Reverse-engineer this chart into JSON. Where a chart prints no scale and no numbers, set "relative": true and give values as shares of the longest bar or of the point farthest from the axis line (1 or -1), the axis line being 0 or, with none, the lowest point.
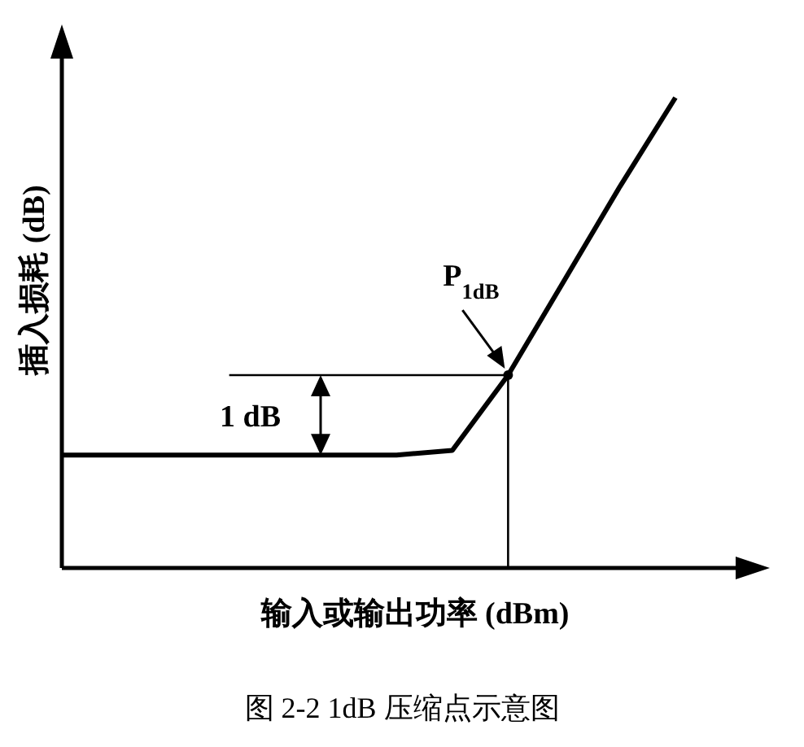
{
  "chart_data": {
    "type": "line",
    "title": "图 2-2 1dB 压缩点示意图",
    "xlabel": "输入或输出功率 (dBm)",
    "ylabel": "插入损耗 (dB)",
    "relative": true,
    "categories": [
      null,
      null,
      null,
      null,
      null,
      null,
      null,
      null,
      null,
      null,
      null,
      null
    ],
    "series": [
      {
        "color": "#000000",
        "values": [
          0.24,
          0.24,
          0.24,
          0.24,
          0.24,
          0.24,
          0.24,
          0.25,
          0.41,
          0.61,
          0.81,
          1.0
        ]
      }
    ],
    "ref_lines": [
      {
        "axis": "y",
        "value": 0.41,
        "color": "#000000"
      }
    ],
    "annotations": [
      {
        "text": "P$_{1dB}$",
        "y": 0.41
      },
      "1 dB"
    ]
  }
}
